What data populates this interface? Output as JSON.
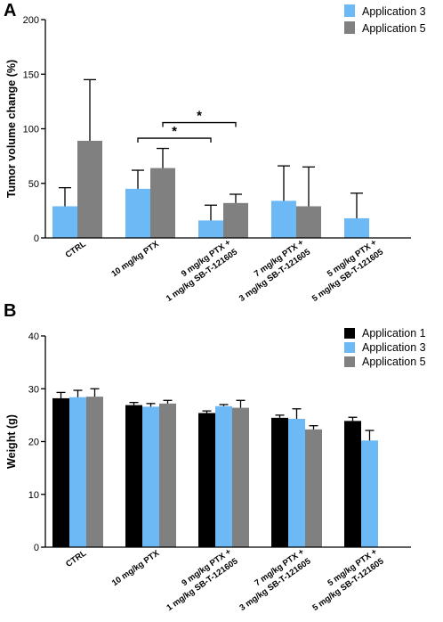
{
  "chart_data": [
    {
      "panel": "A",
      "type": "bar",
      "ylabel": "Tumor volume change (%)",
      "xlabel": "",
      "ylim": [
        0,
        200
      ],
      "yticks": [
        0,
        50,
        100,
        150,
        200
      ],
      "categories": [
        [
          "CTRL"
        ],
        [
          "10 mg/kg PTX"
        ],
        [
          "9 mg/kg PTX +",
          "1 mg/kg SB-T-121605"
        ],
        [
          "7 mg/kg PTX +",
          "3 mg/kg SB-T-121605"
        ],
        [
          "5 mg/kg PTX +",
          "5 mg/kg SB-T-121605"
        ]
      ],
      "series": [
        {
          "name": "Application 3",
          "color": "#6cb9f5",
          "values": [
            29,
            45,
            16,
            34,
            18
          ],
          "errors": [
            17,
            17,
            14,
            32,
            23
          ]
        },
        {
          "name": "Application 5",
          "color": "#808080",
          "values": [
            89,
            64,
            32,
            29,
            null
          ],
          "errors": [
            56,
            18,
            8,
            36,
            null
          ]
        }
      ],
      "legend": "top-right",
      "grid": false,
      "significance": [
        {
          "label": "*",
          "from": {
            "category": 1,
            "series": 0
          },
          "to": {
            "category": 2,
            "series": 0
          }
        },
        {
          "label": "*",
          "from": {
            "category": 1,
            "series": 1
          },
          "to": {
            "category": 2,
            "series": 1
          }
        }
      ]
    },
    {
      "panel": "B",
      "type": "bar",
      "ylabel": "Weight (g)",
      "xlabel": "",
      "ylim": [
        0,
        40
      ],
      "yticks": [
        0,
        10,
        20,
        30,
        40
      ],
      "categories": [
        [
          "CTRL"
        ],
        [
          "10 mg/kg PTX"
        ],
        [
          "9 mg/kg PTX +",
          "1 mg/kg SB-T-121605"
        ],
        [
          "7 mg/kg PTX +",
          "3 mg/kg SB-T-121605"
        ],
        [
          "5 mg/kg PTX +",
          "5 mg/kg SB-T-121605"
        ]
      ],
      "series": [
        {
          "name": "Application 1",
          "color": "#000000",
          "values": [
            28.2,
            26.9,
            25.4,
            24.5,
            23.9
          ],
          "errors": [
            1.1,
            0.5,
            0.4,
            0.5,
            0.7
          ]
        },
        {
          "name": "Application 3",
          "color": "#6cb9f5",
          "values": [
            28.4,
            26.6,
            26.7,
            24.3,
            20.2
          ],
          "errors": [
            1.3,
            0.6,
            0.3,
            1.9,
            1.9
          ]
        },
        {
          "name": "Application 5",
          "color": "#808080",
          "values": [
            28.5,
            27.2,
            26.4,
            22.3,
            null
          ],
          "errors": [
            1.5,
            0.6,
            1.4,
            0.7,
            null
          ]
        }
      ],
      "legend": "top-right",
      "grid": false
    }
  ]
}
